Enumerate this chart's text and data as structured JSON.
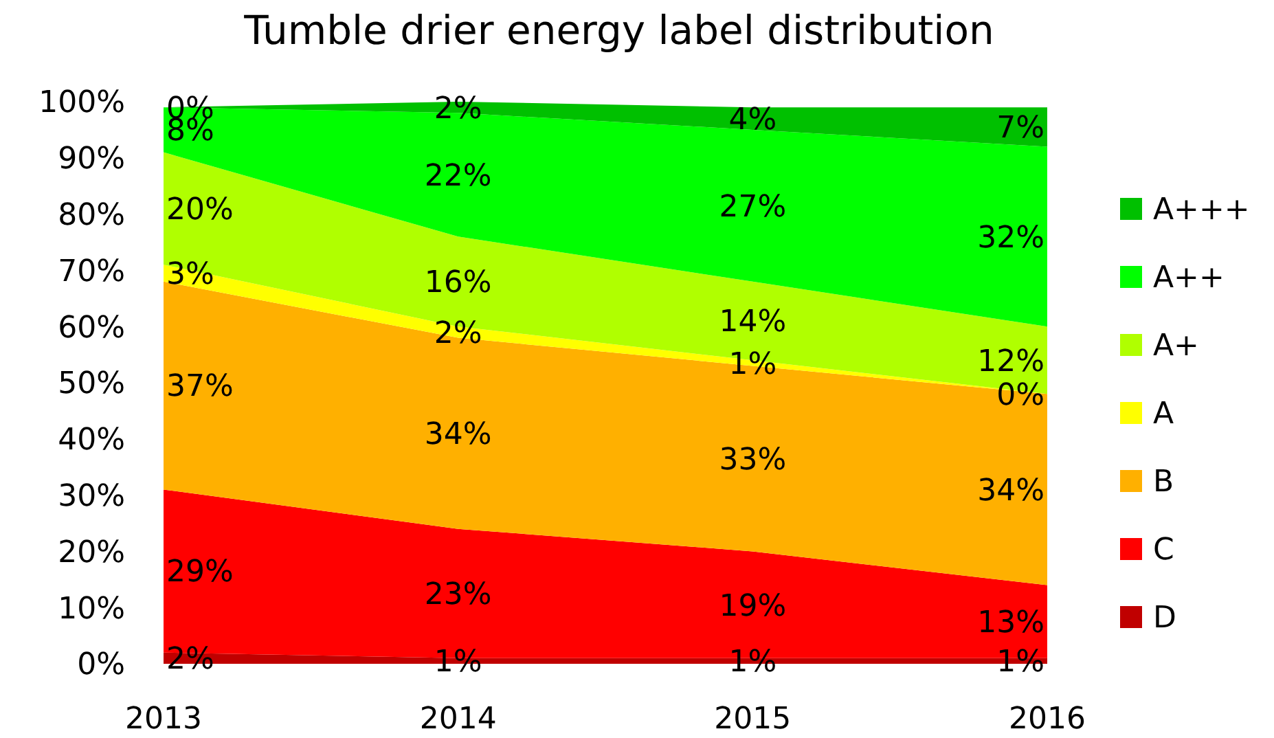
{
  "chart_data": {
    "type": "area",
    "title": "Tumble drier energy label distribution",
    "categories": [
      "2013",
      "2014",
      "2015",
      "2016"
    ],
    "stacked": true,
    "legend": "right",
    "grid": false,
    "ylim": [
      0,
      100
    ],
    "yticks": [
      {
        "value": 0,
        "label": "0%"
      },
      {
        "value": 10,
        "label": "10%"
      },
      {
        "value": 20,
        "label": "20%"
      },
      {
        "value": 30,
        "label": "30%"
      },
      {
        "value": 40,
        "label": "40%"
      },
      {
        "value": 50,
        "label": "50%"
      },
      {
        "value": 60,
        "label": "60%"
      },
      {
        "value": 70,
        "label": "70%"
      },
      {
        "value": 80,
        "label": "80%"
      },
      {
        "value": 90,
        "label": "90%"
      },
      {
        "value": 100,
        "label": "100%"
      }
    ],
    "series": [
      {
        "name": "D",
        "color": "#c00000",
        "values": [
          2,
          1,
          1,
          1
        ],
        "value_labels": [
          "2%",
          "1%",
          "1%",
          "1%"
        ]
      },
      {
        "name": "C",
        "color": "#ff0000",
        "values": [
          29,
          23,
          19,
          13
        ],
        "value_labels": [
          "29%",
          "23%",
          "19%",
          "13%"
        ]
      },
      {
        "name": "B",
        "color": "#ffb000",
        "values": [
          37,
          34,
          33,
          34
        ],
        "value_labels": [
          "37%",
          "34%",
          "33%",
          "34%"
        ]
      },
      {
        "name": "A",
        "color": "#ffff00",
        "values": [
          3,
          2,
          1,
          0
        ],
        "value_labels": [
          "3%",
          "2%",
          "1%",
          "0%"
        ]
      },
      {
        "name": "A+",
        "color": "#b0ff00",
        "values": [
          20,
          16,
          14,
          12
        ],
        "value_labels": [
          "20%",
          "16%",
          "14%",
          "12%"
        ]
      },
      {
        "name": "A++",
        "color": "#00ff00",
        "values": [
          8,
          22,
          27,
          32
        ],
        "value_labels": [
          "8%",
          "22%",
          "27%",
          "32%"
        ]
      },
      {
        "name": "A+++",
        "color": "#00c000",
        "values": [
          0,
          2,
          4,
          7
        ],
        "value_labels": [
          "0%",
          "2%",
          "4%",
          "7%"
        ]
      }
    ]
  }
}
